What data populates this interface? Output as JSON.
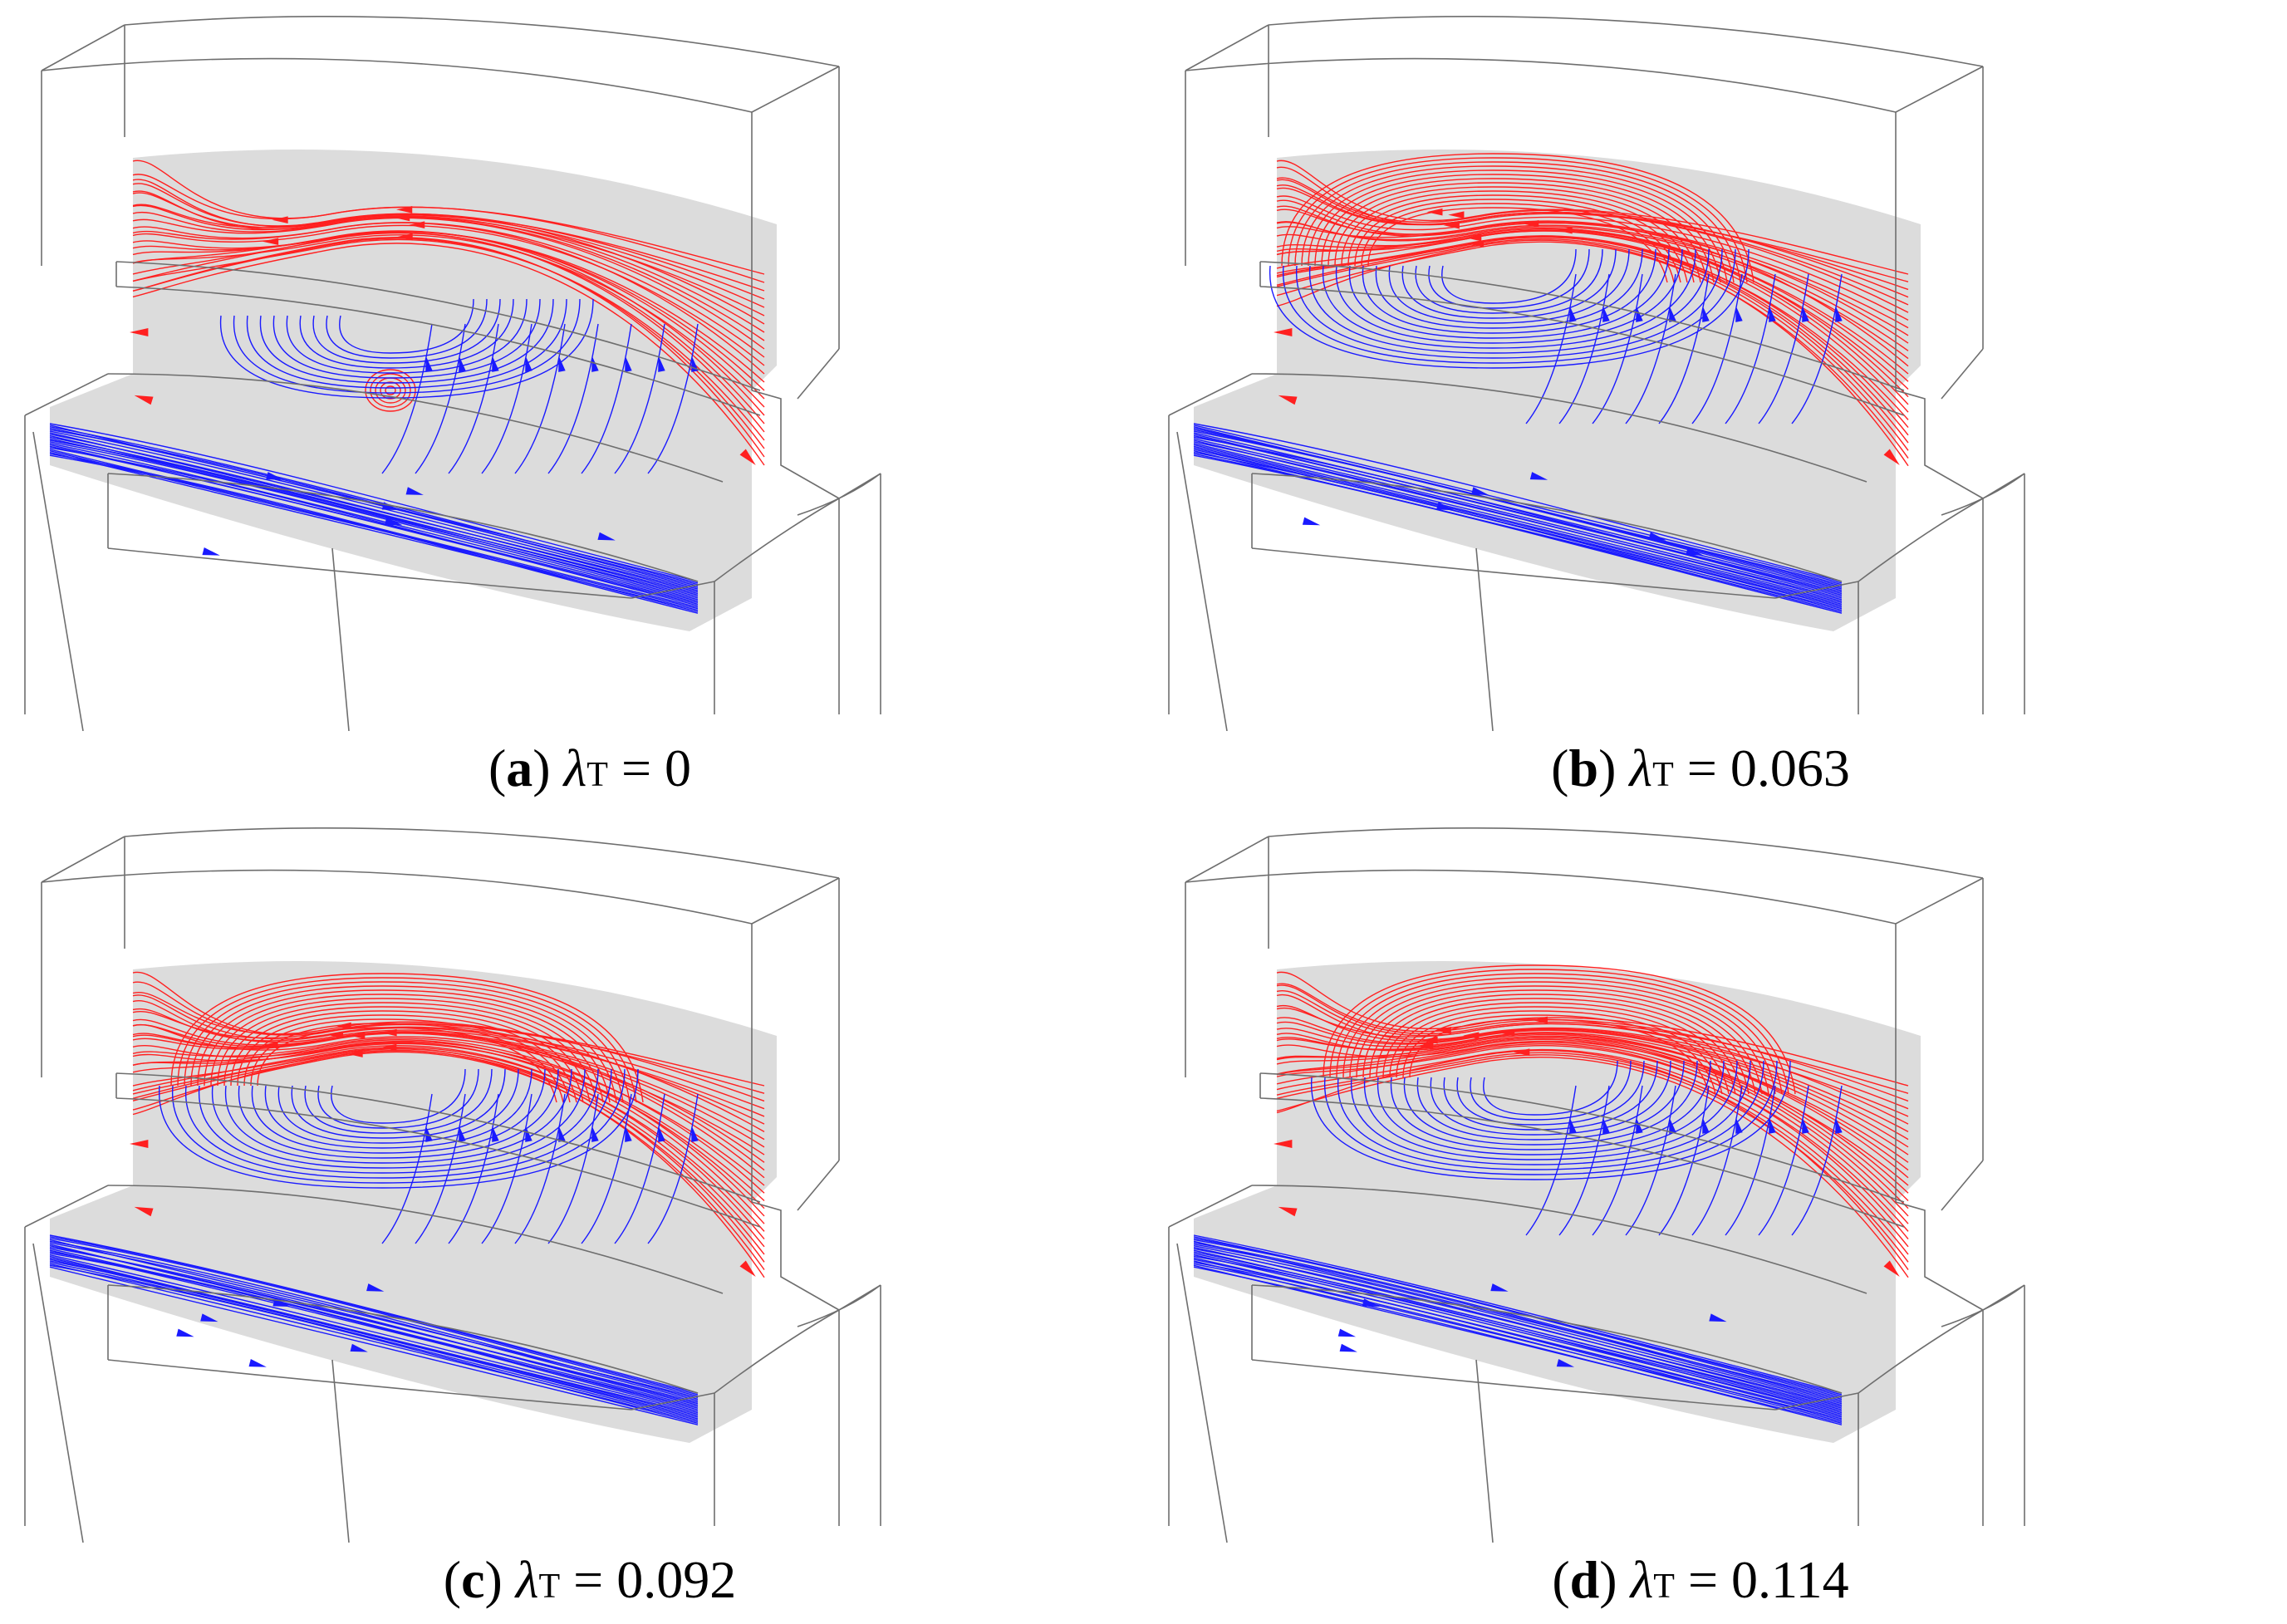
{
  "panels": [
    {
      "id": "a",
      "letter": "a",
      "symbol": "λ",
      "subscript": "T",
      "value": "0"
    },
    {
      "id": "b",
      "letter": "b",
      "symbol": "λ",
      "subscript": "T",
      "value": "0.063"
    },
    {
      "id": "c",
      "letter": "c",
      "symbol": "λ",
      "subscript": "T",
      "value": "0.092"
    },
    {
      "id": "d",
      "letter": "d",
      "symbol": "λ",
      "subscript": "T",
      "value": "0.114"
    }
  ],
  "colors": {
    "upper_streamlines": "#ff2020",
    "lower_streamlines": "#1a1aff",
    "section_plane": "#dcdcdc",
    "wireframe": "#6e6e6e"
  }
}
